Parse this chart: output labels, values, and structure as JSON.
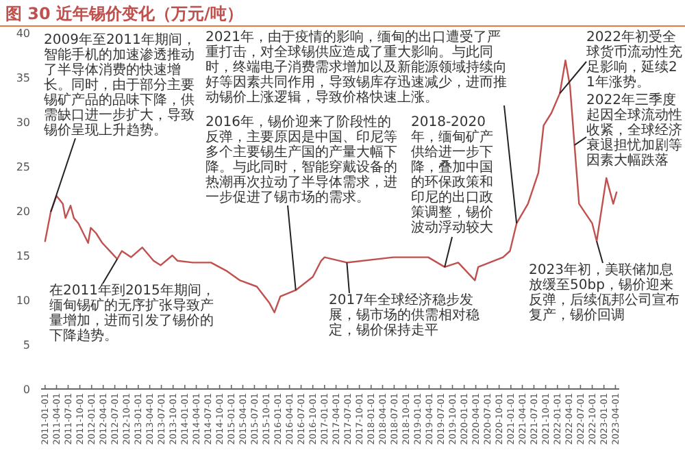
{
  "chart_data": {
    "type": "line",
    "title": "图 30 近年锡价变化（万元/吨）",
    "x": [
      "2011-01-01",
      "2011-02-15",
      "2011-04-01",
      "2011-05-20",
      "2011-06-10",
      "2011-07-20",
      "2011-08-15",
      "2011-09-20",
      "2011-12-05",
      "2011-12-25",
      "2012-02-05",
      "2012-03-25",
      "2012-06-05",
      "2012-07-20",
      "2012-08-25",
      "2012-11-05",
      "2013-02-01",
      "2013-05-01",
      "2013-06-25",
      "2013-09-25",
      "2013-11-05",
      "2014-03-05",
      "2014-07-25",
      "2014-11-20",
      "2015-03-10",
      "2015-07-20",
      "2015-10-25",
      "2015-12-05",
      "2016-01-20",
      "2016-05-20",
      "2016-10-01",
      "2016-12-05",
      "2017-01-01",
      "2017-06-25",
      "2018-06-25",
      "2019-03-25",
      "2019-08-01",
      "2019-11-15",
      "2020-03-25",
      "2020-04-20",
      "2020-11-01",
      "2020-12-25",
      "2021-02-15",
      "2021-05-15",
      "2021-08-05",
      "2021-09-15",
      "2021-11-15",
      "2022-01-20",
      "2022-03-05",
      "2022-04-10",
      "2022-05-15",
      "2022-06-20",
      "2022-10-01",
      "2022-11-05",
      "2023-01-20",
      "2023-03-15",
      "2023-04-10"
    ],
    "series": [
      {
        "color": "#c0504d",
        "values": [
          16.6,
          19.9,
          21.7,
          20.8,
          19.2,
          20.6,
          19.2,
          18.6,
          16.4,
          18.1,
          17.5,
          16.4,
          15.3,
          14.6,
          15.5,
          14.8,
          15.9,
          14.4,
          13.9,
          15.0,
          14.4,
          14.2,
          14.2,
          13.3,
          12.2,
          11.5,
          9.7,
          8.6,
          10.4,
          11.1,
          12.6,
          14.4,
          14.8,
          14.2,
          14.8,
          14.8,
          13.7,
          14.2,
          12.2,
          13.7,
          14.8,
          15.5,
          18.6,
          20.8,
          24.3,
          29.6,
          31.0,
          33.2,
          36.9,
          34.0,
          27.4,
          20.8,
          18.6,
          16.6,
          23.7,
          20.8,
          22.1
        ]
      }
    ],
    "xlim": [
      "2010-12-01",
      "2023-05-01"
    ],
    "xticks": [
      "2011-01-01",
      "2011-04-01",
      "2011-07-01",
      "2011-10-01",
      "2012-01-01",
      "2012-04-01",
      "2012-07-01",
      "2012-10-01",
      "2013-01-01",
      "2013-04-01",
      "2013-07-01",
      "2013-10-01",
      "2014-01-01",
      "2014-04-01",
      "2014-07-01",
      "2014-10-01",
      "2015-01-01",
      "2015-04-01",
      "2015-07-01",
      "2015-10-01",
      "2016-01-01",
      "2016-04-01",
      "2016-07-01",
      "2016-10-01",
      "2017-01-01",
      "2017-04-01",
      "2017-07-01",
      "2017-10-01",
      "2018-01-01",
      "2018-04-01",
      "2018-07-01",
      "2018-10-01",
      "2019-01-01",
      "2019-04-01",
      "2019-07-01",
      "2019-10-01",
      "2020-01-01",
      "2020-04-01",
      "2020-07-01",
      "2020-10-01",
      "2021-01-01",
      "2021-04-01",
      "2021-07-01",
      "2021-10-01",
      "2022-01-01",
      "2022-04-01",
      "2022-07-01",
      "2022-10-01",
      "2023-01-01",
      "2023-04-01"
    ],
    "ylim": [
      0,
      40
    ],
    "yticks": [
      0,
      5,
      10,
      15,
      20,
      25,
      30,
      35,
      40
    ],
    "annotations": [
      {
        "text": "2009年至2011年期间，智能手机的加速渗透推动了半导体消费的快速增长。同时，由于部分主要锡矿产品的品味下降，供需缺口进一步扩大，导致锡价呈现上升趋势。",
        "x": "2011-02-15",
        "y": 19.9
      },
      {
        "text": "在2011年到2015年期间，缅甸锡矿的无序扩张导致产量增加，进而引发了锡价的下降趋势。",
        "x": "2012-07-20",
        "y": 14.6
      },
      {
        "text": "2016年，锡价迎来了阶段性的反弹，主要原因是中国、印尼等多个主要锡生产国的产量大幅下降。与此同时，智能穿戴设备的热潮再次拉动了半导体需求，进一步促进了锡市场的需求。",
        "x": "2016-05-20",
        "y": 11.1
      },
      {
        "text": "2021年，由于疫情的影响，缅甸的出口遭受了严重打击，对全球锡供应造成了重大影响。与此同时，终端电子消费需求增加以及新能源领域持续向好等因素共同作用，导致锡库存迅速减少，进而推动锡价上涨逻辑，导致价格快速上涨。",
        "x": "2021-02-15",
        "y": 18.6
      },
      {
        "text": "2018-2020年，缅甸矿产供给进一步下降，叠加中国的环保政策和印尼的出口政策调整，锡价波动浮动较大",
        "x": "2019-08-01",
        "y": 13.7
      },
      {
        "text": "2017年全球经济稳步发展，锡市场的供需相对稳定，锡价保持走平",
        "x": "2017-06-25",
        "y": 14.2
      },
      {
        "text": "2022年初受全球货币流动性充足影响，延续21年涨势。",
        "x": "2022-01-20",
        "y": 33.2
      },
      {
        "text": "2022年三季度起因全球流动性收紧，全球经济衰退担忧加剧等因素大幅跌落",
        "x": "2022-05-15",
        "y": 27.4
      },
      {
        "text": "2023年初，美联储加息放缓至50bp，锡价迎来反弹，后续佤邦公司宣布复产，锡价回调",
        "x": "2022-11-05",
        "y": 16.6
      }
    ]
  }
}
